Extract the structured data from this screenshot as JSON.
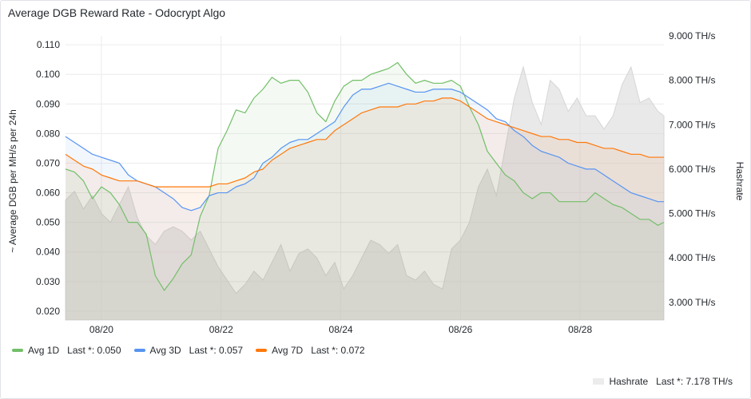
{
  "panel": {
    "title": "Average DGB Reward Rate - Odocrypt Algo"
  },
  "chart_data": {
    "type": "line",
    "ylabel_left": "~ Average DGB per MH/s per 24h",
    "ylabel_right": "Hashrate",
    "ylim_left": [
      0.017,
      0.113
    ],
    "ylim_right": [
      2.6,
      9.0
    ],
    "yticks_left": [
      "0.020",
      "0.030",
      "0.040",
      "0.050",
      "0.060",
      "0.070",
      "0.080",
      "0.090",
      "0.100",
      "0.110"
    ],
    "yticks_right": [
      "3.000 TH/s",
      "4.000 TH/s",
      "5.000 TH/s",
      "6.000 TH/s",
      "7.000 TH/s",
      "8.000 TH/s",
      "9.000 TH/s"
    ],
    "xticks": [
      "08/20",
      "08/22",
      "08/24",
      "08/26",
      "08/28"
    ],
    "xtick_days": [
      20,
      22,
      24,
      26,
      28
    ],
    "xlim_days": [
      19.4,
      29.4
    ],
    "series": [
      {
        "name": "Avg 1D",
        "color": "#73bf69",
        "last": "Last *: 0.050",
        "x": [
          19.4,
          19.55,
          19.7,
          19.85,
          20.0,
          20.15,
          20.3,
          20.45,
          20.6,
          20.75,
          20.9,
          21.05,
          21.2,
          21.35,
          21.5,
          21.65,
          21.8,
          21.95,
          22.1,
          22.25,
          22.4,
          22.55,
          22.7,
          22.85,
          23.0,
          23.15,
          23.3,
          23.45,
          23.6,
          23.75,
          23.9,
          24.05,
          24.2,
          24.35,
          24.5,
          24.65,
          24.8,
          24.95,
          25.1,
          25.25,
          25.4,
          25.55,
          25.7,
          25.85,
          26.0,
          26.15,
          26.3,
          26.45,
          26.6,
          26.75,
          26.9,
          27.05,
          27.2,
          27.35,
          27.5,
          27.65,
          27.8,
          27.95,
          28.1,
          28.25,
          28.4,
          28.55,
          28.7,
          28.85,
          29.0,
          29.15,
          29.3,
          29.4
        ],
        "values": [
          0.068,
          0.067,
          0.064,
          0.058,
          0.062,
          0.06,
          0.056,
          0.05,
          0.05,
          0.046,
          0.032,
          0.027,
          0.031,
          0.036,
          0.039,
          0.052,
          0.059,
          0.075,
          0.081,
          0.088,
          0.087,
          0.092,
          0.095,
          0.099,
          0.097,
          0.098,
          0.098,
          0.094,
          0.087,
          0.084,
          0.091,
          0.096,
          0.098,
          0.098,
          0.1,
          0.101,
          0.102,
          0.104,
          0.1,
          0.097,
          0.098,
          0.097,
          0.097,
          0.098,
          0.096,
          0.089,
          0.083,
          0.074,
          0.07,
          0.066,
          0.064,
          0.06,
          0.058,
          0.06,
          0.06,
          0.057,
          0.057,
          0.057,
          0.057,
          0.06,
          0.058,
          0.056,
          0.055,
          0.053,
          0.051,
          0.051,
          0.049,
          0.05
        ]
      },
      {
        "name": "Avg 3D",
        "color": "#5794f2",
        "last": "Last *: 0.057",
        "x": [
          19.4,
          19.55,
          19.7,
          19.85,
          20.0,
          20.15,
          20.3,
          20.45,
          20.6,
          20.75,
          20.9,
          21.05,
          21.2,
          21.35,
          21.5,
          21.65,
          21.8,
          21.95,
          22.1,
          22.25,
          22.4,
          22.55,
          22.7,
          22.85,
          23.0,
          23.15,
          23.3,
          23.45,
          23.6,
          23.75,
          23.9,
          24.05,
          24.2,
          24.35,
          24.5,
          24.65,
          24.8,
          24.95,
          25.1,
          25.25,
          25.4,
          25.55,
          25.7,
          25.85,
          26.0,
          26.15,
          26.3,
          26.45,
          26.6,
          26.75,
          26.9,
          27.05,
          27.2,
          27.35,
          27.5,
          27.65,
          27.8,
          27.95,
          28.1,
          28.25,
          28.4,
          28.55,
          28.7,
          28.85,
          29.0,
          29.15,
          29.3,
          29.4
        ],
        "values": [
          0.079,
          0.077,
          0.075,
          0.073,
          0.072,
          0.071,
          0.07,
          0.066,
          0.064,
          0.063,
          0.062,
          0.06,
          0.058,
          0.055,
          0.054,
          0.055,
          0.059,
          0.06,
          0.06,
          0.062,
          0.063,
          0.065,
          0.07,
          0.072,
          0.075,
          0.077,
          0.078,
          0.078,
          0.08,
          0.082,
          0.084,
          0.089,
          0.093,
          0.095,
          0.095,
          0.096,
          0.097,
          0.096,
          0.095,
          0.094,
          0.094,
          0.095,
          0.095,
          0.095,
          0.094,
          0.092,
          0.09,
          0.088,
          0.085,
          0.084,
          0.081,
          0.079,
          0.076,
          0.074,
          0.073,
          0.072,
          0.07,
          0.069,
          0.068,
          0.068,
          0.066,
          0.064,
          0.062,
          0.06,
          0.059,
          0.058,
          0.057,
          0.057
        ]
      },
      {
        "name": "Avg 7D",
        "color": "#ff780a",
        "last": "Last *: 0.072",
        "x": [
          19.4,
          19.55,
          19.7,
          19.85,
          20.0,
          20.15,
          20.3,
          20.45,
          20.6,
          20.75,
          20.9,
          21.05,
          21.2,
          21.35,
          21.5,
          21.65,
          21.8,
          21.95,
          22.1,
          22.25,
          22.4,
          22.55,
          22.7,
          22.85,
          23.0,
          23.15,
          23.3,
          23.45,
          23.6,
          23.75,
          23.9,
          24.05,
          24.2,
          24.35,
          24.5,
          24.65,
          24.8,
          24.95,
          25.1,
          25.25,
          25.4,
          25.55,
          25.7,
          25.85,
          26.0,
          26.15,
          26.3,
          26.45,
          26.6,
          26.75,
          26.9,
          27.05,
          27.2,
          27.35,
          27.5,
          27.65,
          27.8,
          27.95,
          28.1,
          28.25,
          28.4,
          28.55,
          28.7,
          28.85,
          29.0,
          29.15,
          29.3,
          29.4
        ],
        "values": [
          0.073,
          0.071,
          0.069,
          0.068,
          0.066,
          0.065,
          0.064,
          0.064,
          0.064,
          0.063,
          0.062,
          0.062,
          0.062,
          0.062,
          0.062,
          0.062,
          0.062,
          0.063,
          0.063,
          0.064,
          0.065,
          0.067,
          0.068,
          0.071,
          0.073,
          0.075,
          0.076,
          0.077,
          0.078,
          0.078,
          0.081,
          0.083,
          0.085,
          0.087,
          0.088,
          0.089,
          0.089,
          0.089,
          0.09,
          0.09,
          0.091,
          0.091,
          0.092,
          0.092,
          0.091,
          0.089,
          0.087,
          0.085,
          0.084,
          0.083,
          0.082,
          0.081,
          0.08,
          0.079,
          0.079,
          0.078,
          0.078,
          0.077,
          0.077,
          0.076,
          0.075,
          0.075,
          0.074,
          0.073,
          0.073,
          0.072,
          0.072,
          0.072
        ]
      },
      {
        "name": "Hashrate",
        "color": "#d8d8d8",
        "last": "Last *: 7.178 TH/s",
        "axis": "right",
        "x": [
          19.4,
          19.55,
          19.7,
          19.85,
          20.0,
          20.15,
          20.3,
          20.45,
          20.6,
          20.75,
          20.9,
          21.05,
          21.2,
          21.35,
          21.5,
          21.65,
          21.8,
          21.95,
          22.1,
          22.25,
          22.4,
          22.55,
          22.7,
          22.85,
          23.0,
          23.15,
          23.3,
          23.45,
          23.6,
          23.75,
          23.9,
          24.05,
          24.2,
          24.35,
          24.5,
          24.65,
          24.8,
          24.95,
          25.1,
          25.25,
          25.4,
          25.55,
          25.7,
          25.85,
          26.0,
          26.15,
          26.3,
          26.45,
          26.6,
          26.75,
          26.9,
          27.05,
          27.2,
          27.35,
          27.5,
          27.65,
          27.8,
          27.95,
          28.1,
          28.25,
          28.4,
          28.55,
          28.7,
          28.85,
          29.0,
          29.15,
          29.3,
          29.4
        ],
        "values": [
          5.3,
          5.5,
          5.1,
          5.4,
          5.0,
          4.8,
          5.2,
          5.6,
          4.9,
          4.5,
          4.3,
          4.6,
          4.7,
          4.6,
          4.4,
          4.6,
          4.2,
          3.8,
          3.5,
          3.2,
          3.4,
          3.7,
          3.5,
          3.9,
          4.3,
          3.7,
          4.1,
          4.2,
          4.0,
          3.6,
          3.9,
          3.3,
          3.6,
          4.0,
          4.4,
          4.3,
          4.1,
          4.3,
          3.6,
          3.5,
          3.7,
          3.4,
          3.3,
          4.2,
          4.4,
          4.8,
          5.6,
          6.0,
          5.4,
          6.5,
          7.6,
          8.3,
          7.5,
          7.0,
          8.0,
          7.8,
          7.3,
          7.6,
          7.2,
          7.2,
          6.9,
          7.2,
          7.9,
          8.3,
          7.5,
          7.6,
          7.3,
          7.2
        ]
      }
    ]
  },
  "legend": {
    "avg1d_name": "Avg 1D",
    "avg1d_last": "Last *: 0.050",
    "avg3d_name": "Avg 3D",
    "avg3d_last": "Last *: 0.057",
    "avg7d_name": "Avg 7D",
    "avg7d_last": "Last *: 0.072",
    "hashrate_name": "Hashrate",
    "hashrate_last": "Last *: 7.178 TH/s"
  }
}
